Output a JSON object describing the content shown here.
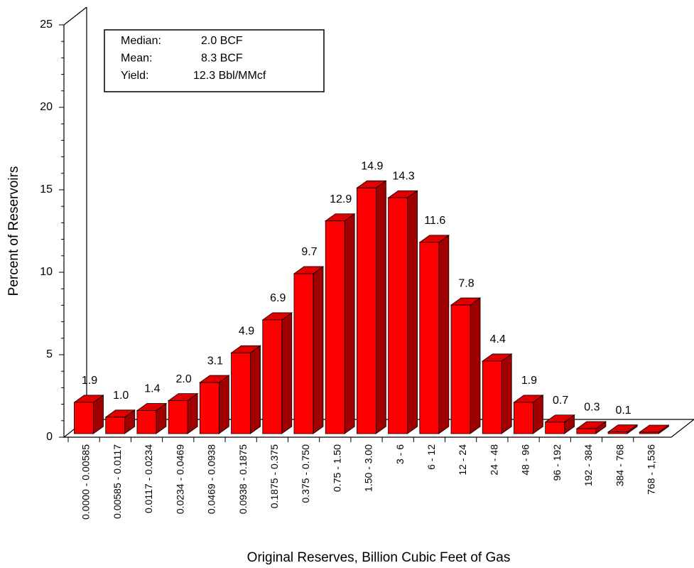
{
  "chart_data": {
    "type": "bar3d",
    "x_label": "Original Reserves, Billion Cubic Feet of Gas",
    "y_label": "Percent of Reservoirs",
    "categories": [
      "0.0000 - 0.00585",
      "0.00585 - 0.0117",
      "0.0117 - 0.0234",
      "0.0234 - 0.0469",
      "0.0469 - 0.0938",
      "0.0938 - 0.1875",
      "0.1875 - 0.375",
      "0.375 - 0.750",
      "0.75 - 1.50",
      "1.50 - 3.00",
      "3 - 6",
      "6 - 12",
      "12 - 24",
      "24 - 48",
      "48 - 96",
      "96 - 192",
      "192 - 384",
      "384 - 768",
      "768 - 1,536"
    ],
    "values": [
      1.9,
      1.0,
      1.4,
      2.0,
      3.1,
      4.9,
      6.9,
      9.7,
      12.9,
      14.9,
      14.3,
      11.6,
      7.8,
      4.4,
      1.9,
      0.7,
      0.3,
      0.1,
      0.05
    ],
    "value_labels": [
      "1.9",
      "1.0",
      "1.4",
      "2.0",
      "3.1",
      "4.9",
      "6.9",
      "9.7",
      "12.9",
      "14.9",
      "14.3",
      "11.6",
      "7.8",
      "4.4",
      "1.9",
      "0.7",
      "0.3",
      "0.1",
      null
    ],
    "color": "#ff0000",
    "ylim": [
      0,
      25
    ],
    "yticks": [
      0,
      5,
      10,
      15,
      20,
      25
    ],
    "annotations": [
      [
        "Median:",
        "2.0 BCF"
      ],
      [
        "Mean:",
        "8.3 BCF"
      ],
      [
        "Yield:",
        "12.3 Bbl/MMcf"
      ]
    ]
  }
}
